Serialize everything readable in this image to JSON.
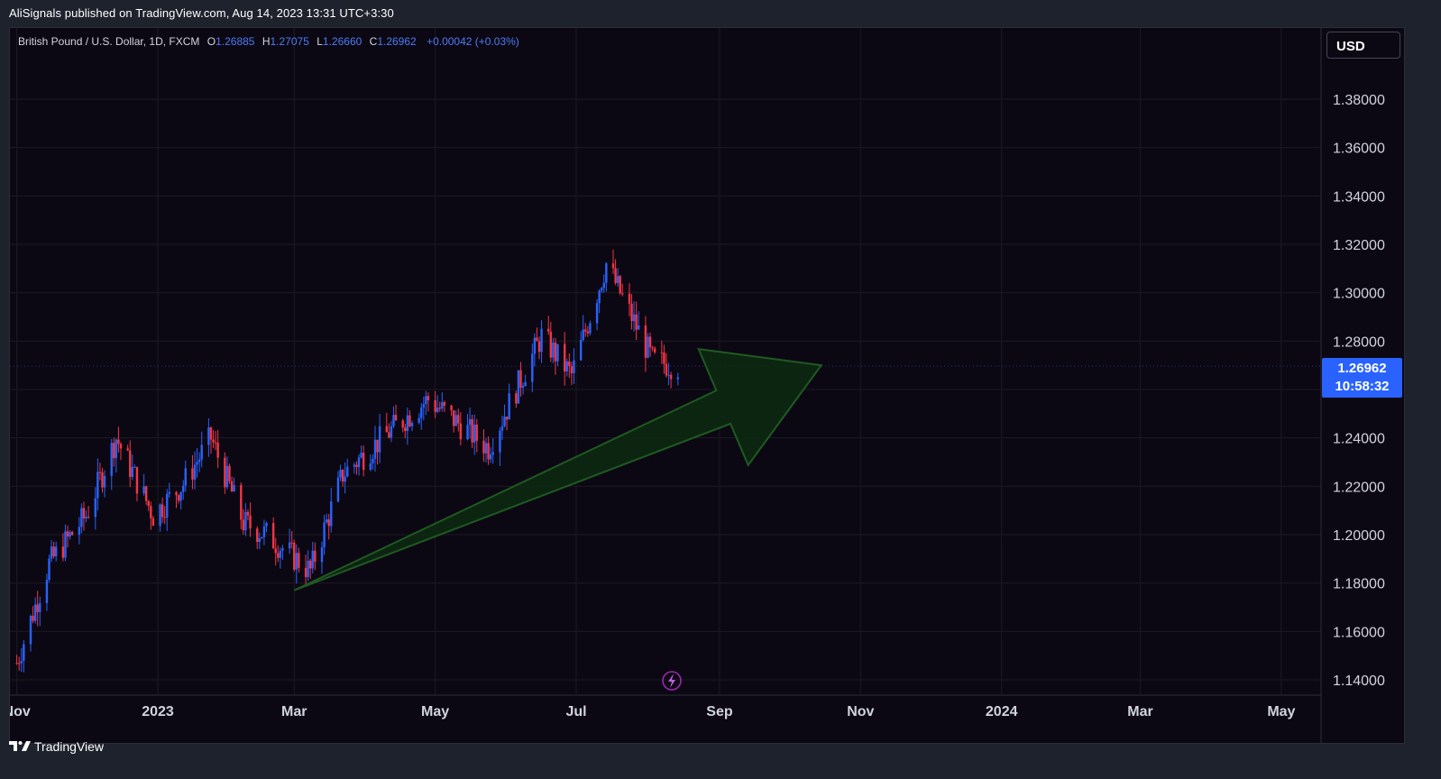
{
  "header": {
    "published": "AliSignals published on TradingView.com, Aug 14, 2023 13:31 UTC+3:30"
  },
  "legend": {
    "symbol": "British Pound / U.S. Dollar, 1D, FXCM",
    "o_label": "O",
    "o": "1.26885",
    "h_label": "H",
    "h": "1.27075",
    "l_label": "L",
    "l": "1.26660",
    "c_label": "C",
    "c": "1.26962",
    "change": "+0.00042 (+0.03%)"
  },
  "currency": "USD",
  "price_tag": {
    "price": "1.26962",
    "countdown": "10:58:32"
  },
  "brand": "TradingView",
  "colors": {
    "background": "#0c0813",
    "up": "#2962ff",
    "down": "#f23645",
    "arrow_fill": "#0d2a10",
    "arrow_stroke": "#1f5a22",
    "grid": "#1a1a22"
  },
  "icons": {
    "lightning": "lightning-icon",
    "logo": "tradingview-logo-icon"
  },
  "chart_data": {
    "type": "candlestick",
    "symbol": "GBPUSD",
    "timeframe": "1D",
    "ylim": [
      1.13,
      1.39
    ],
    "y_ticks": [
      "1.38000",
      "1.36000",
      "1.34000",
      "1.32000",
      "1.30000",
      "1.28000",
      "1.26000",
      "1.24000",
      "1.22000",
      "1.20000",
      "1.18000",
      "1.16000",
      "1.14000"
    ],
    "x_ticks": [
      "Nov",
      "2023",
      "Mar",
      "May",
      "Jul",
      "Sep",
      "Nov",
      "2024",
      "Mar",
      "May"
    ],
    "last_price": 1.26962,
    "approx_close_path": [
      [
        "2022-11-01",
        1.147
      ],
      [
        "2022-11-15",
        1.188
      ],
      [
        "2022-12-01",
        1.208
      ],
      [
        "2022-12-14",
        1.24
      ],
      [
        "2022-12-30",
        1.208
      ],
      [
        "2023-01-12",
        1.221
      ],
      [
        "2023-01-24",
        1.24
      ],
      [
        "2023-02-07",
        1.205
      ],
      [
        "2023-02-17",
        1.2
      ],
      [
        "2023-03-08",
        1.185
      ],
      [
        "2023-03-22",
        1.225
      ],
      [
        "2023-04-14",
        1.245
      ],
      [
        "2023-04-28",
        1.256
      ],
      [
        "2023-05-24",
        1.236
      ],
      [
        "2023-06-16",
        1.282
      ],
      [
        "2023-06-29",
        1.266
      ],
      [
        "2023-07-14",
        1.312
      ],
      [
        "2023-07-27",
        1.286
      ],
      [
        "2023-08-03",
        1.272
      ],
      [
        "2023-08-14",
        1.2696
      ]
    ],
    "annotation": {
      "type": "arrow",
      "from": [
        "2023-03-01",
        1.177
      ],
      "to": [
        "2023-10-15",
        1.27
      ]
    }
  }
}
